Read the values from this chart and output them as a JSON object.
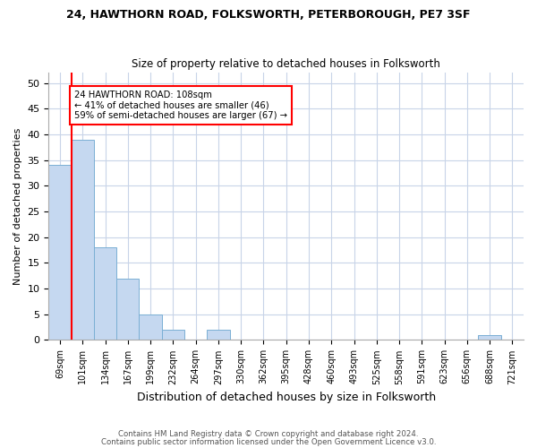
{
  "title_line1": "24, HAWTHORN ROAD, FOLKSWORTH, PETERBOROUGH, PE7 3SF",
  "title_line2": "Size of property relative to detached houses in Folksworth",
  "xlabel": "Distribution of detached houses by size in Folksworth",
  "ylabel": "Number of detached properties",
  "footer_line1": "Contains HM Land Registry data © Crown copyright and database right 2024.",
  "footer_line2": "Contains public sector information licensed under the Open Government Licence v3.0.",
  "bin_labels": [
    "69sqm",
    "101sqm",
    "134sqm",
    "167sqm",
    "199sqm",
    "232sqm",
    "264sqm",
    "297sqm",
    "330sqm",
    "362sqm",
    "395sqm",
    "428sqm",
    "460sqm",
    "493sqm",
    "525sqm",
    "558sqm",
    "591sqm",
    "623sqm",
    "656sqm",
    "688sqm",
    "721sqm"
  ],
  "bar_values": [
    34,
    39,
    18,
    12,
    5,
    2,
    0,
    2,
    0,
    0,
    0,
    0,
    0,
    0,
    0,
    0,
    0,
    0,
    0,
    1,
    0
  ],
  "bar_color": "#c5d8f0",
  "bar_edge_color": "#7aafd4",
  "grid_color": "#c8d4e8",
  "property_bin_index": 1,
  "annotation_text": "24 HAWTHORN ROAD: 108sqm\n← 41% of detached houses are smaller (46)\n59% of semi-detached houses are larger (67) →",
  "annotation_box_color": "white",
  "annotation_box_edge_color": "red",
  "vline_color": "red",
  "ylim": [
    0,
    52
  ],
  "yticks": [
    0,
    5,
    10,
    15,
    20,
    25,
    30,
    35,
    40,
    45,
    50
  ],
  "background_color": "#ffffff",
  "axes_background_color": "#ffffff"
}
